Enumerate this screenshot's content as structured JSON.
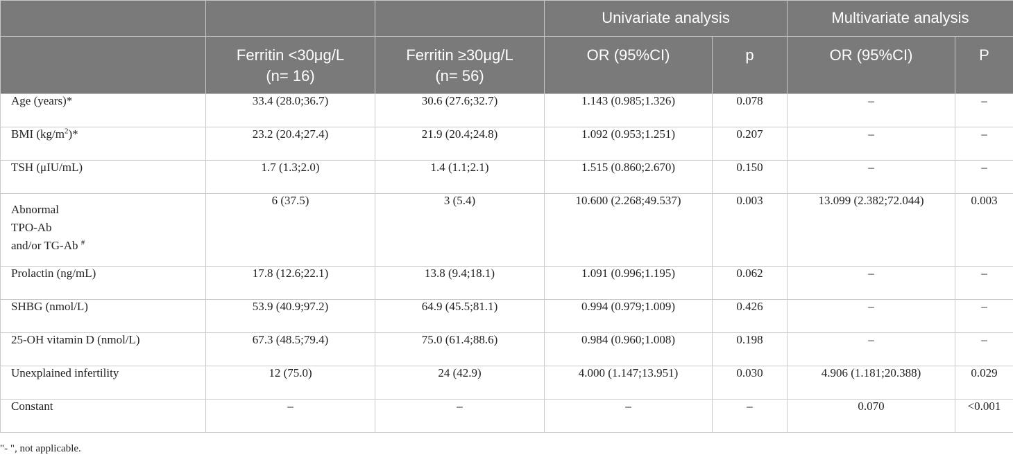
{
  "header": {
    "group_univariate": "Univariate analysis",
    "group_multivariate": "Multivariate analysis",
    "col_low_line1": "Ferritin <30μg/L",
    "col_low_line2": "(n= 16)",
    "col_high_line1": "Ferritin ≥30μg/L",
    "col_high_line2": "(n= 56)",
    "uni_or": "OR (95%CI)",
    "uni_p": "p",
    "multi_or": "OR (95%CI)",
    "multi_p": "P"
  },
  "rows": [
    {
      "label": "Age (years)*",
      "low": "33.4 (28.0;36.7)",
      "high": "30.6 (27.6;32.7)",
      "uni_or": "1.143 (0.985;1.326)",
      "uni_p": "0.078",
      "multi_or": "–",
      "multi_p": "–"
    },
    {
      "label_pre": "BMI (kg/m",
      "label_sup": "2",
      "label_post": ")*",
      "low": "23.2 (20.4;27.4)",
      "high": "21.9 (20.4;24.8)",
      "uni_or": "1.092 (0.953;1.251)",
      "uni_p": "0.207",
      "multi_or": "–",
      "multi_p": "–"
    },
    {
      "label": "TSH (μIU/mL)",
      "low": "1.7 (1.3;2.0)",
      "high": "1.4 (1.1;2.1)",
      "uni_or": "1.515 (0.860;2.670)",
      "uni_p": "0.150",
      "multi_or": "–",
      "multi_p": "–"
    },
    {
      "label_line1": "Abnormal",
      "label_line2": "TPO-Ab",
      "label_line3": "and/or TG-Ab",
      "label_sup": "#",
      "low": "6 (37.5)",
      "high": "3 (5.4)",
      "uni_or": "10.600 (2.268;49.537)",
      "uni_p": "0.003",
      "multi_or": "13.099 (2.382;72.044)",
      "multi_p": "0.003"
    },
    {
      "label": "Prolactin (ng/mL)",
      "low": "17.8 (12.6;22.1)",
      "high": "13.8 (9.4;18.1)",
      "uni_or": "1.091 (0.996;1.195)",
      "uni_p": "0.062",
      "multi_or": "–",
      "multi_p": "–"
    },
    {
      "label": "SHBG (nmol/L)",
      "low": "53.9 (40.9;97.2)",
      "high": "64.9 (45.5;81.1)",
      "uni_or": "0.994 (0.979;1.009)",
      "uni_p": "0.426",
      "multi_or": "–",
      "multi_p": "–"
    },
    {
      "label": "25-OH vitamin D (nmol/L)",
      "low": "67.3 (48.5;79.4)",
      "high": "75.0 (61.4;88.6)",
      "uni_or": "0.984 (0.960;1.008)",
      "uni_p": "0.198",
      "multi_or": "–",
      "multi_p": "–"
    },
    {
      "label": "Unexplained infertility",
      "low": "12 (75.0)",
      "high": "24 (42.9)",
      "uni_or": "4.000 (1.147;13.951)",
      "uni_p": "0.030",
      "multi_or": "4.906 (1.181;20.388)",
      "multi_p": "0.029"
    },
    {
      "label": "Constant",
      "low": "–",
      "high": "–",
      "uni_or": "–",
      "uni_p": "–",
      "multi_or": "0.070",
      "multi_p": "<0.001"
    }
  ],
  "footnote": "\"- \", not applicable.",
  "colors": {
    "header_bg": "#7a7a7a",
    "header_text": "#ffffff",
    "border": "#c9c9c9"
  }
}
